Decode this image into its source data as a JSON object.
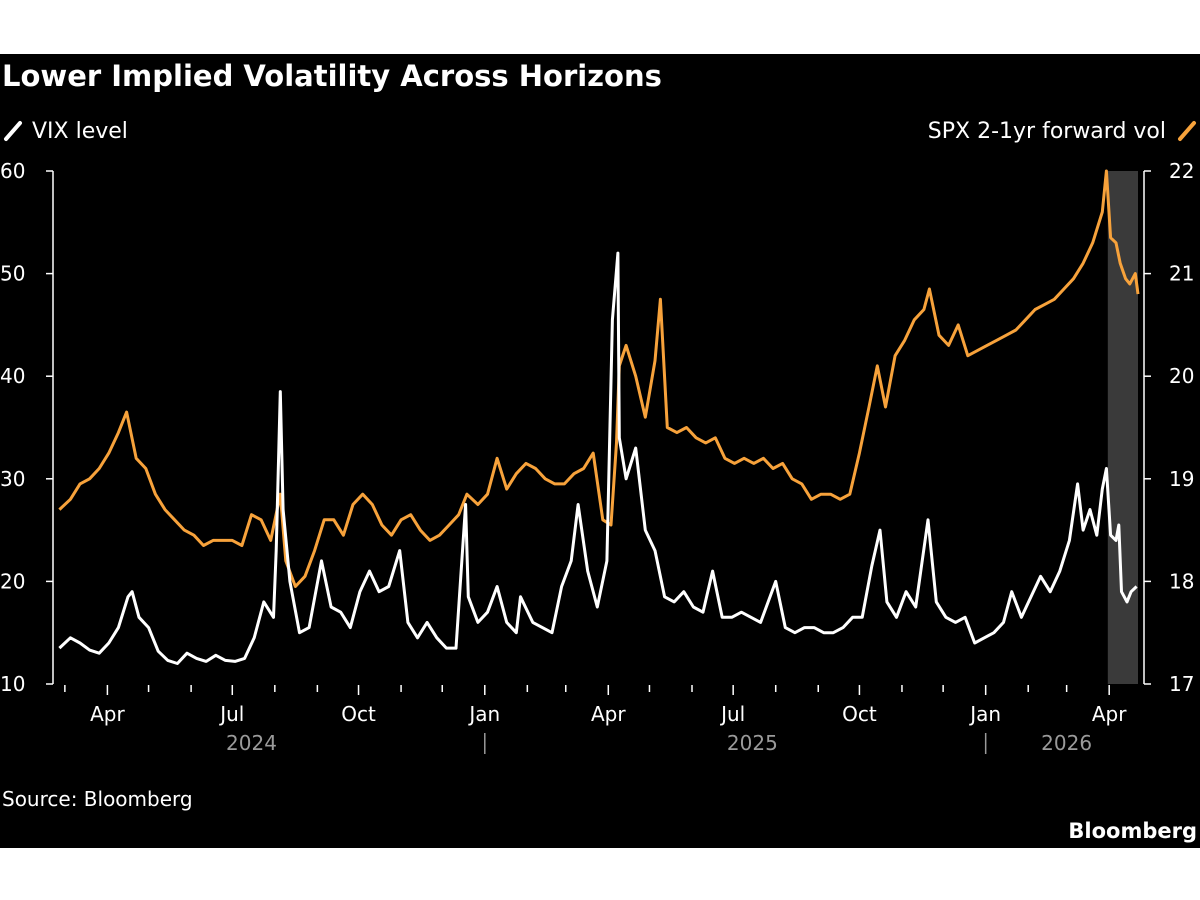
{
  "colors": {
    "background": "#000000",
    "vix": "#ffffff",
    "forward_vol": "#f7a23b",
    "highlight": "#3a3a3a",
    "year_text": "#9a9a9a"
  },
  "chart_data": {
    "type": "line",
    "title": "Lower Implied Volatility Across Horizons",
    "source": "Source: Bloomberg",
    "brand": "Bloomberg",
    "x_range": [
      "2024-02-25",
      "2026-04-22"
    ],
    "x_ticks": [
      {
        "date": "2024-04-01",
        "label": "Apr"
      },
      {
        "date": "2024-07-01",
        "label": "Jul"
      },
      {
        "date": "2024-10-01",
        "label": "Oct"
      },
      {
        "date": "2025-01-01",
        "label": "Jan"
      },
      {
        "date": "2025-04-01",
        "label": "Apr"
      },
      {
        "date": "2025-07-01",
        "label": "Jul"
      },
      {
        "date": "2025-10-01",
        "label": "Oct"
      },
      {
        "date": "2026-01-01",
        "label": "Jan"
      },
      {
        "date": "2026-04-01",
        "label": "Apr"
      }
    ],
    "year_labels": [
      {
        "label": "2024",
        "date": "2024-07-15"
      },
      {
        "label": "2025",
        "date": "2025-07-15"
      },
      {
        "label": "2026",
        "date": "2026-03-01"
      }
    ],
    "year_separators": [
      "2025-01-01",
      "2026-01-01"
    ],
    "highlight_range": [
      "2026-03-31",
      "2026-04-22"
    ],
    "left_axis": {
      "min": 10,
      "max": 60,
      "ticks": [
        "10",
        "20",
        "30",
        "40",
        "50",
        "60"
      ]
    },
    "right_axis": {
      "min": 17,
      "max": 22,
      "ticks": [
        "17",
        "18",
        "19",
        "20",
        "21",
        "22"
      ]
    },
    "series": [
      {
        "name": "VIX level",
        "axis": "left",
        "points": [
          [
            "2024-02-26",
            13.5
          ],
          [
            "2024-03-05",
            14.5
          ],
          [
            "2024-03-12",
            14.0
          ],
          [
            "2024-03-19",
            13.3
          ],
          [
            "2024-03-26",
            13.0
          ],
          [
            "2024-04-02",
            14.0
          ],
          [
            "2024-04-09",
            15.5
          ],
          [
            "2024-04-16",
            18.5
          ],
          [
            "2024-04-19",
            19.0
          ],
          [
            "2024-04-24",
            16.5
          ],
          [
            "2024-05-01",
            15.5
          ],
          [
            "2024-05-08",
            13.2
          ],
          [
            "2024-05-15",
            12.3
          ],
          [
            "2024-05-22",
            12.0
          ],
          [
            "2024-05-29",
            13.0
          ],
          [
            "2024-06-05",
            12.5
          ],
          [
            "2024-06-12",
            12.2
          ],
          [
            "2024-06-19",
            12.8
          ],
          [
            "2024-06-26",
            12.3
          ],
          [
            "2024-07-03",
            12.2
          ],
          [
            "2024-07-10",
            12.5
          ],
          [
            "2024-07-17",
            14.5
          ],
          [
            "2024-07-24",
            18.0
          ],
          [
            "2024-07-31",
            16.5
          ],
          [
            "2024-08-02",
            23.0
          ],
          [
            "2024-08-05",
            38.5
          ],
          [
            "2024-08-07",
            27.0
          ],
          [
            "2024-08-12",
            20.0
          ],
          [
            "2024-08-19",
            15.0
          ],
          [
            "2024-08-26",
            15.5
          ],
          [
            "2024-09-04",
            22.0
          ],
          [
            "2024-09-11",
            17.5
          ],
          [
            "2024-09-18",
            17.0
          ],
          [
            "2024-09-25",
            15.5
          ],
          [
            "2024-10-02",
            19.0
          ],
          [
            "2024-10-09",
            21.0
          ],
          [
            "2024-10-16",
            19.0
          ],
          [
            "2024-10-23",
            19.5
          ],
          [
            "2024-10-31",
            23.0
          ],
          [
            "2024-11-06",
            16.0
          ],
          [
            "2024-11-13",
            14.5
          ],
          [
            "2024-11-20",
            16.0
          ],
          [
            "2024-11-27",
            14.5
          ],
          [
            "2024-12-04",
            13.5
          ],
          [
            "2024-12-11",
            13.5
          ],
          [
            "2024-12-18",
            27.5
          ],
          [
            "2024-12-20",
            18.5
          ],
          [
            "2024-12-27",
            16.0
          ],
          [
            "2025-01-03",
            17.0
          ],
          [
            "2025-01-10",
            19.5
          ],
          [
            "2025-01-17",
            16.0
          ],
          [
            "2025-01-24",
            15.0
          ],
          [
            "2025-01-27",
            18.5
          ],
          [
            "2025-02-05",
            16.0
          ],
          [
            "2025-02-12",
            15.5
          ],
          [
            "2025-02-19",
            15.0
          ],
          [
            "2025-02-26",
            19.5
          ],
          [
            "2025-03-05",
            22.0
          ],
          [
            "2025-03-10",
            27.5
          ],
          [
            "2025-03-17",
            21.0
          ],
          [
            "2025-03-24",
            17.5
          ],
          [
            "2025-03-31",
            22.0
          ],
          [
            "2025-04-04",
            45.5
          ],
          [
            "2025-04-08",
            52.0
          ],
          [
            "2025-04-09",
            34.0
          ],
          [
            "2025-04-14",
            30.0
          ],
          [
            "2025-04-21",
            33.0
          ],
          [
            "2025-04-28",
            25.0
          ],
          [
            "2025-05-05",
            23.0
          ],
          [
            "2025-05-12",
            18.5
          ],
          [
            "2025-05-19",
            18.0
          ],
          [
            "2025-05-26",
            19.0
          ],
          [
            "2025-06-02",
            17.5
          ],
          [
            "2025-06-09",
            17.0
          ],
          [
            "2025-06-16",
            21.0
          ],
          [
            "2025-06-23",
            16.5
          ],
          [
            "2025-06-30",
            16.5
          ],
          [
            "2025-07-07",
            17.0
          ],
          [
            "2025-07-14",
            16.5
          ],
          [
            "2025-07-21",
            16.0
          ],
          [
            "2025-08-01",
            20.0
          ],
          [
            "2025-08-08",
            15.5
          ],
          [
            "2025-08-15",
            15.0
          ],
          [
            "2025-08-22",
            15.5
          ],
          [
            "2025-08-29",
            15.5
          ],
          [
            "2025-09-05",
            15.0
          ],
          [
            "2025-09-12",
            15.0
          ],
          [
            "2025-09-19",
            15.5
          ],
          [
            "2025-09-26",
            16.5
          ],
          [
            "2025-10-03",
            16.5
          ],
          [
            "2025-10-10",
            21.5
          ],
          [
            "2025-10-16",
            25.0
          ],
          [
            "2025-10-21",
            18.0
          ],
          [
            "2025-10-28",
            16.5
          ],
          [
            "2025-11-04",
            19.0
          ],
          [
            "2025-11-11",
            17.5
          ],
          [
            "2025-11-20",
            26.0
          ],
          [
            "2025-11-26",
            18.0
          ],
          [
            "2025-12-03",
            16.5
          ],
          [
            "2025-12-10",
            16.0
          ],
          [
            "2025-12-17",
            16.5
          ],
          [
            "2025-12-24",
            14.0
          ],
          [
            "2025-12-31",
            14.5
          ],
          [
            "2026-01-07",
            15.0
          ],
          [
            "2026-01-14",
            16.0
          ],
          [
            "2026-01-20",
            19.0
          ],
          [
            "2026-01-27",
            16.5
          ],
          [
            "2026-02-03",
            18.5
          ],
          [
            "2026-02-10",
            20.5
          ],
          [
            "2026-02-17",
            19.0
          ],
          [
            "2026-02-24",
            21.0
          ],
          [
            "2026-03-03",
            24.0
          ],
          [
            "2026-03-09",
            29.5
          ],
          [
            "2026-03-13",
            25.0
          ],
          [
            "2026-03-18",
            27.0
          ],
          [
            "2026-03-23",
            24.5
          ],
          [
            "2026-03-27",
            29.0
          ],
          [
            "2026-03-30",
            31.0
          ],
          [
            "2026-04-02",
            24.5
          ],
          [
            "2026-04-06",
            24.0
          ],
          [
            "2026-04-08",
            25.5
          ],
          [
            "2026-04-10",
            19.0
          ],
          [
            "2026-04-14",
            18.0
          ],
          [
            "2026-04-17",
            19.0
          ],
          [
            "2026-04-21",
            19.5
          ]
        ]
      },
      {
        "name": "SPX 2-1yr forward vol",
        "axis": "right",
        "points": [
          [
            "2024-02-26",
            18.7
          ],
          [
            "2024-03-05",
            18.8
          ],
          [
            "2024-03-12",
            18.95
          ],
          [
            "2024-03-19",
            19.0
          ],
          [
            "2024-03-26",
            19.1
          ],
          [
            "2024-04-02",
            19.25
          ],
          [
            "2024-04-09",
            19.45
          ],
          [
            "2024-04-15",
            19.65
          ],
          [
            "2024-04-22",
            19.2
          ],
          [
            "2024-04-29",
            19.1
          ],
          [
            "2024-05-06",
            18.85
          ],
          [
            "2024-05-13",
            18.7
          ],
          [
            "2024-05-20",
            18.6
          ],
          [
            "2024-05-27",
            18.5
          ],
          [
            "2024-06-03",
            18.45
          ],
          [
            "2024-06-10",
            18.35
          ],
          [
            "2024-06-17",
            18.4
          ],
          [
            "2024-06-24",
            18.4
          ],
          [
            "2024-07-01",
            18.4
          ],
          [
            "2024-07-08",
            18.35
          ],
          [
            "2024-07-15",
            18.65
          ],
          [
            "2024-07-22",
            18.6
          ],
          [
            "2024-07-29",
            18.4
          ],
          [
            "2024-08-05",
            18.85
          ],
          [
            "2024-08-09",
            18.2
          ],
          [
            "2024-08-16",
            17.95
          ],
          [
            "2024-08-23",
            18.05
          ],
          [
            "2024-08-30",
            18.3
          ],
          [
            "2024-09-06",
            18.6
          ],
          [
            "2024-09-13",
            18.6
          ],
          [
            "2024-09-20",
            18.45
          ],
          [
            "2024-09-27",
            18.75
          ],
          [
            "2024-10-04",
            18.85
          ],
          [
            "2024-10-11",
            18.75
          ],
          [
            "2024-10-18",
            18.55
          ],
          [
            "2024-10-25",
            18.45
          ],
          [
            "2024-11-01",
            18.6
          ],
          [
            "2024-11-08",
            18.65
          ],
          [
            "2024-11-15",
            18.5
          ],
          [
            "2024-11-22",
            18.4
          ],
          [
            "2024-11-29",
            18.45
          ],
          [
            "2024-12-06",
            18.55
          ],
          [
            "2024-12-13",
            18.65
          ],
          [
            "2024-12-19",
            18.85
          ],
          [
            "2024-12-27",
            18.75
          ],
          [
            "2025-01-03",
            18.85
          ],
          [
            "2025-01-10",
            19.2
          ],
          [
            "2025-01-17",
            18.9
          ],
          [
            "2025-01-24",
            19.05
          ],
          [
            "2025-01-31",
            19.15
          ],
          [
            "2025-02-07",
            19.1
          ],
          [
            "2025-02-14",
            19.0
          ],
          [
            "2025-02-21",
            18.95
          ],
          [
            "2025-02-28",
            18.95
          ],
          [
            "2025-03-07",
            19.05
          ],
          [
            "2025-03-14",
            19.1
          ],
          [
            "2025-03-21",
            19.25
          ],
          [
            "2025-03-28",
            18.6
          ],
          [
            "2025-04-03",
            18.55
          ],
          [
            "2025-04-07",
            19.35
          ],
          [
            "2025-04-09",
            20.1
          ],
          [
            "2025-04-14",
            20.3
          ],
          [
            "2025-04-21",
            20.0
          ],
          [
            "2025-04-28",
            19.6
          ],
          [
            "2025-05-05",
            20.15
          ],
          [
            "2025-05-09",
            20.75
          ],
          [
            "2025-05-14",
            19.5
          ],
          [
            "2025-05-21",
            19.45
          ],
          [
            "2025-05-28",
            19.5
          ],
          [
            "2025-06-04",
            19.4
          ],
          [
            "2025-06-11",
            19.35
          ],
          [
            "2025-06-18",
            19.4
          ],
          [
            "2025-06-25",
            19.2
          ],
          [
            "2025-07-02",
            19.15
          ],
          [
            "2025-07-09",
            19.2
          ],
          [
            "2025-07-16",
            19.15
          ],
          [
            "2025-07-23",
            19.2
          ],
          [
            "2025-07-30",
            19.1
          ],
          [
            "2025-08-06",
            19.15
          ],
          [
            "2025-08-13",
            19.0
          ],
          [
            "2025-08-20",
            18.95
          ],
          [
            "2025-08-27",
            18.8
          ],
          [
            "2025-09-03",
            18.85
          ],
          [
            "2025-09-10",
            18.85
          ],
          [
            "2025-09-17",
            18.8
          ],
          [
            "2025-09-24",
            18.85
          ],
          [
            "2025-10-01",
            19.25
          ],
          [
            "2025-10-08",
            19.7
          ],
          [
            "2025-10-14",
            20.1
          ],
          [
            "2025-10-20",
            19.7
          ],
          [
            "2025-10-27",
            20.2
          ],
          [
            "2025-11-03",
            20.35
          ],
          [
            "2025-11-10",
            20.55
          ],
          [
            "2025-11-17",
            20.65
          ],
          [
            "2025-11-21",
            20.85
          ],
          [
            "2025-11-28",
            20.4
          ],
          [
            "2025-12-05",
            20.3
          ],
          [
            "2025-12-12",
            20.5
          ],
          [
            "2025-12-19",
            20.2
          ],
          [
            "2025-12-26",
            20.25
          ],
          [
            "2026-01-02",
            20.3
          ],
          [
            "2026-01-09",
            20.35
          ],
          [
            "2026-01-16",
            20.4
          ],
          [
            "2026-01-23",
            20.45
          ],
          [
            "2026-01-30",
            20.55
          ],
          [
            "2026-02-06",
            20.65
          ],
          [
            "2026-02-13",
            20.7
          ],
          [
            "2026-02-20",
            20.75
          ],
          [
            "2026-02-27",
            20.85
          ],
          [
            "2026-03-06",
            20.95
          ],
          [
            "2026-03-13",
            21.1
          ],
          [
            "2026-03-20",
            21.3
          ],
          [
            "2026-03-27",
            21.6
          ],
          [
            "2026-03-30",
            22.0
          ],
          [
            "2026-04-02",
            21.35
          ],
          [
            "2026-04-06",
            21.3
          ],
          [
            "2026-04-09",
            21.1
          ],
          [
            "2026-04-13",
            20.95
          ],
          [
            "2026-04-16",
            20.9
          ],
          [
            "2026-04-20",
            21.0
          ],
          [
            "2026-04-22",
            20.8
          ]
        ]
      }
    ]
  }
}
